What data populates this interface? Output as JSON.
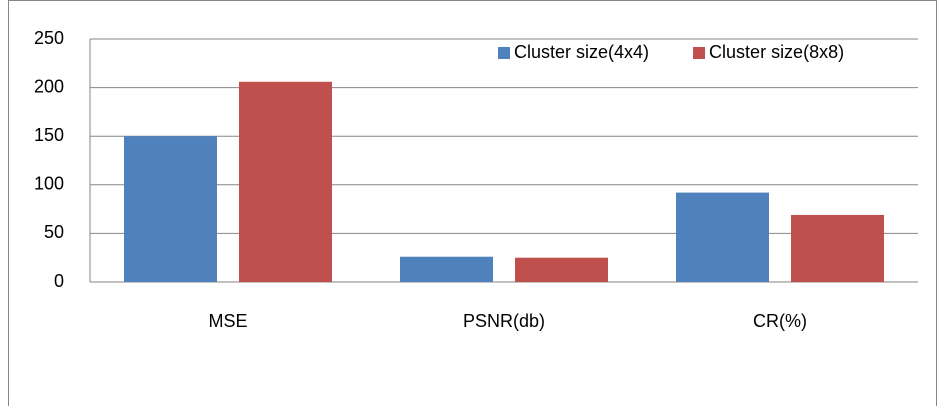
{
  "chart_data": {
    "type": "bar",
    "categories": [
      "MSE",
      "PSNR(db)",
      "CR(%)"
    ],
    "series": [
      {
        "name": "Cluster size(4x4)",
        "color": "#4f81bd",
        "values": [
          150,
          26,
          92
        ]
      },
      {
        "name": "Cluster size(8x8)",
        "color": "#c0504d",
        "values": [
          206,
          25,
          69
        ]
      }
    ],
    "ylim": [
      0,
      250
    ],
    "yticks": [
      0,
      50,
      100,
      150,
      200,
      250
    ],
    "grid": true,
    "legend": "top-right"
  }
}
